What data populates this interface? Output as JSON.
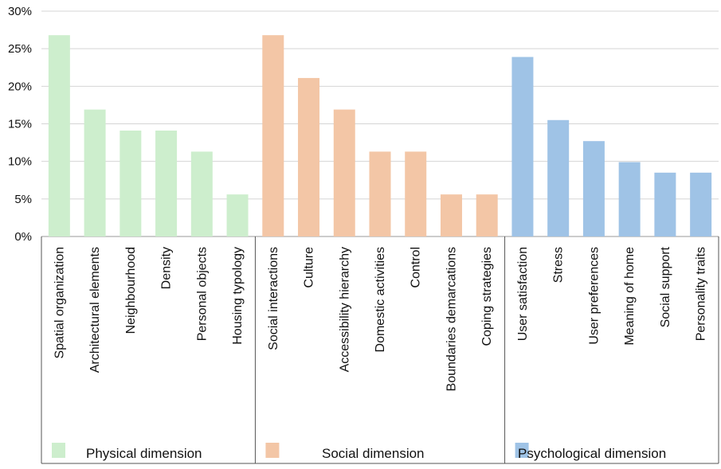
{
  "chart_data": {
    "type": "bar",
    "title": "",
    "xlabel": "",
    "ylabel": "",
    "ylim": [
      0,
      30
    ],
    "yticks": [
      "0%",
      "5%",
      "10%",
      "15%",
      "20%",
      "25%",
      "30%"
    ],
    "ytick_values": [
      0,
      5,
      10,
      15,
      20,
      25,
      30
    ],
    "grid": true,
    "legend_placement": "bottom",
    "groups": [
      {
        "name": "Physical dimension",
        "color": "#cdeecd",
        "categories": [
          "Spatial organization",
          "Architectural elements",
          "Neighbourhood",
          "Density",
          "Personal objects",
          "Housing typology"
        ],
        "values": [
          26.8,
          16.9,
          14.1,
          14.1,
          11.3,
          5.6
        ]
      },
      {
        "name": "Social dimension",
        "color": "#f3c6a6",
        "categories": [
          "Social interactions",
          "Culture",
          "Accessibility hierarchy",
          "Domestic activities",
          "Control",
          "Boundaries demarcations",
          "Coping strategies"
        ],
        "values": [
          26.8,
          21.1,
          16.9,
          11.3,
          11.3,
          5.6,
          5.6
        ]
      },
      {
        "name": "Psychological dimension",
        "color": "#9fc3e6",
        "categories": [
          "User satisfaction",
          "Stress",
          "User preferences",
          "Meaning of home",
          "Social support",
          "Personality traits"
        ],
        "values": [
          23.9,
          15.5,
          12.7,
          9.9,
          8.5,
          8.5
        ]
      }
    ]
  }
}
